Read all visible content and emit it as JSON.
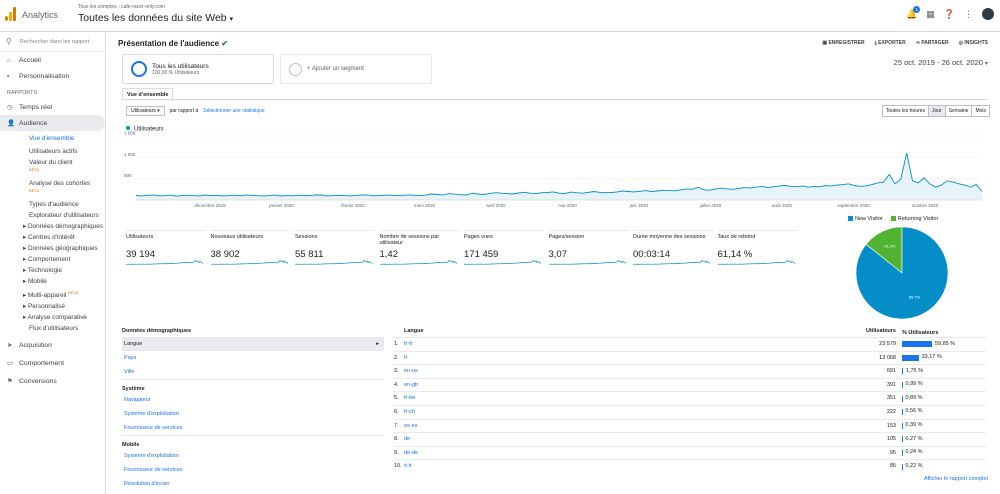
{
  "topbar": {
    "app_title": "Analytics",
    "breadcrumb_account": "Tous les comptes",
    "breadcrumb_property": "cafe-racer-only.com",
    "view_title": "Toutes les données du site Web",
    "notification_count": "1"
  },
  "sidebar": {
    "search_placeholder": "Rechercher dans les rapport",
    "top_items": [
      "Accueil",
      "Personnalisation"
    ],
    "section_label": "RAPPORTS",
    "realtime": "Temps réel",
    "audience": "Audience",
    "audience_sub": [
      "Vue d'ensemble",
      "Utilisateurs actifs",
      "Valeur du client",
      "Analyse des cohortes",
      "Types d'audience",
      "Explorateur d'utilisateurs",
      "Données démographiques",
      "Centres d'intérêt",
      "Données géographiques",
      "Comportement",
      "Technologie",
      "Mobile",
      "Multi-appareil",
      "Personnalisé",
      "Analyse comparative",
      "Flux d'utilisateurs"
    ],
    "beta": "BÊTA",
    "bottom_items": [
      "Acquisition",
      "Comportement",
      "Conversions"
    ]
  },
  "report": {
    "title": "Présentation de l'audience",
    "actions": [
      "ENREGISTRER",
      "EXPORTER",
      "PARTAGER",
      "INSIGHTS"
    ],
    "segment_name": "Tous les utilisateurs",
    "segment_detail": "100,00 % Utilisateurs",
    "add_segment": "+ Ajouter un segment",
    "date_range": "25 oct. 2019 - 26 oct. 2020",
    "tab": "Vue d'ensemble",
    "metric_select": "Utilisateurs",
    "vs_label": "par rapport à",
    "select_metric_link": "Sélectionner une statistique",
    "periods": [
      "Toutes les heures",
      "Jour",
      "Semaine",
      "Mois"
    ],
    "active_period": "Jour",
    "chart_series_label": "Utilisateurs"
  },
  "chart_data": {
    "type": "line",
    "series": [
      {
        "name": "Utilisateurs",
        "values": [
          105,
          95,
          110,
          120,
          98,
          100,
          115,
          90,
          108,
          112,
          100,
          95,
          118,
          102,
          110,
          96,
          104,
          112,
          98,
          120,
          110,
          100,
          92,
          108,
          115,
          96,
          104,
          98,
          112,
          106,
          100,
          120,
          118,
          96,
          104,
          110,
          102,
          96,
          108,
          115,
          120,
          98,
          104,
          112,
          116,
          100,
          110,
          120,
          112,
          104,
          116,
          140,
          130,
          120,
          150,
          135,
          125,
          118,
          160,
          140,
          130,
          150,
          170,
          160,
          150,
          140,
          165,
          180,
          160,
          150,
          170,
          175,
          190,
          160,
          150,
          185,
          170,
          160,
          175,
          200,
          180,
          170,
          175,
          190,
          210,
          200,
          190,
          205,
          220,
          200,
          210,
          230,
          220,
          215,
          240,
          260,
          250,
          300,
          240,
          230,
          260,
          280,
          260,
          250,
          270,
          290,
          280,
          300,
          320,
          290,
          310,
          330,
          340,
          320,
          310,
          330,
          300,
          320,
          310,
          340,
          330,
          350,
          360,
          380,
          340,
          320,
          330,
          360,
          400,
          420,
          600,
          380,
          500,
          1100,
          450,
          400,
          520,
          380,
          300,
          350,
          450,
          420,
          380,
          350,
          300,
          360,
          200
        ]
      }
    ],
    "x_tick_labels": [
      "décembre 2019",
      "janvier 2020",
      "février 2020",
      "mars 2020",
      "avril 2020",
      "mai 2020",
      "juin 2020",
      "juillet 2020",
      "août 2020",
      "septembre 2020",
      "octobre 2020"
    ],
    "y_tick_labels": [
      "500",
      "1 000",
      "1 500"
    ],
    "ylim": [
      0,
      1500
    ],
    "grid": true
  },
  "metrics": [
    {
      "label": "Utilisateurs",
      "value": "39 194"
    },
    {
      "label": "Nouveaux utilisateurs",
      "value": "38 902"
    },
    {
      "label": "Sessions",
      "value": "55 811"
    },
    {
      "label": "Nombre de sessions par utilisateur",
      "value": "1,42"
    },
    {
      "label": "Pages vues",
      "value": "171 459"
    },
    {
      "label": "Pages/session",
      "value": "3,07"
    },
    {
      "label": "Durée moyenne des sessions",
      "value": "00:03:14"
    },
    {
      "label": "Taux de rebond",
      "value": "61,14 %"
    }
  ],
  "pie": {
    "legend": [
      "New Visitor",
      "Returning Visitor"
    ],
    "colors": [
      "#058dc7",
      "#50b432"
    ],
    "slices": [
      85.7,
      14.3
    ],
    "slice_labels": [
      "85,7%",
      "14,3%"
    ]
  },
  "dimensions": {
    "group1": "Données démographiques",
    "group1_items": [
      "Langue",
      "Pays",
      "Ville"
    ],
    "group2": "Système",
    "group2_items": [
      "Navigateur",
      "Système d'exploitation",
      "Fournisseur de services"
    ],
    "group3": "Mobile",
    "group3_items": [
      "Système d'exploitation",
      "Fournisseur de services",
      "Résolution d'écran"
    ]
  },
  "lang_table": {
    "headers": [
      "Langue",
      "Utilisateurs",
      "% Utilisateurs"
    ],
    "rows": [
      {
        "idx": "1.",
        "lang": "fr-fr",
        "users": "23 579",
        "pct": "59,85 %",
        "share": 59.85
      },
      {
        "idx": "2.",
        "lang": "fr",
        "users": "13 068",
        "pct": "33,17 %",
        "share": 33.17
      },
      {
        "idx": "3.",
        "lang": "en-us",
        "users": "691",
        "pct": "1,75 %",
        "share": 1.75
      },
      {
        "idx": "4.",
        "lang": "en-gb",
        "users": "391",
        "pct": "0,99 %",
        "share": 0.99
      },
      {
        "idx": "5.",
        "lang": "fr-be",
        "users": "351",
        "pct": "0,89 %",
        "share": 0.89
      },
      {
        "idx": "6.",
        "lang": "fr-ch",
        "users": "222",
        "pct": "0,56 %",
        "share": 0.56
      },
      {
        "idx": "7.",
        "lang": "es-es",
        "users": "153",
        "pct": "0,39 %",
        "share": 0.39
      },
      {
        "idx": "8.",
        "lang": "de",
        "users": "105",
        "pct": "0,27 %",
        "share": 0.27
      },
      {
        "idx": "9.",
        "lang": "de-de",
        "users": "95",
        "pct": "0,24 %",
        "share": 0.24
      },
      {
        "idx": "10.",
        "lang": "it-it",
        "users": "85",
        "pct": "0,22 %",
        "share": 0.22
      }
    ],
    "full_report_link": "Afficher le rapport complet"
  }
}
